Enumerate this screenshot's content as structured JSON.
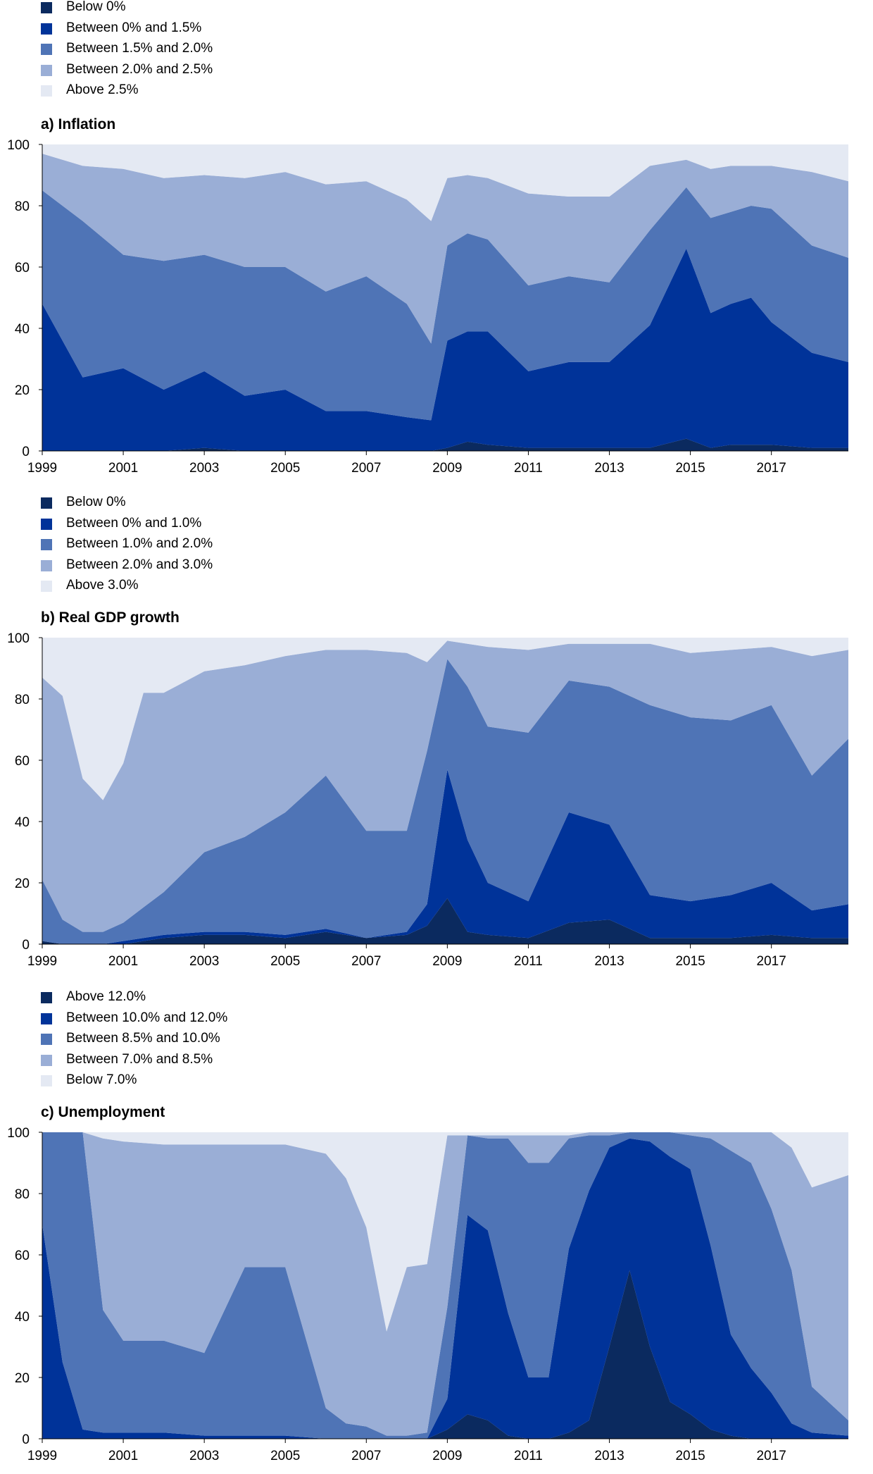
{
  "colors": [
    "#0b2a5f",
    "#003399",
    "#4f74b6",
    "#9aaed6",
    "#e4e9f3"
  ],
  "chart_data": [
    {
      "type": "area",
      "title": "a) Inflation",
      "stacked": true,
      "ylim": [
        0,
        100
      ],
      "yticks": [
        "0",
        "20",
        "40",
        "60",
        "80",
        "100"
      ],
      "xlim": [
        1999,
        2018.9
      ],
      "xticks": [
        "1999",
        "2001",
        "2003",
        "2005",
        "2007",
        "2009",
        "2011",
        "2013",
        "2015",
        "2017"
      ],
      "legend_position": "top-left",
      "x": [
        1999.0,
        2000.0,
        2001.0,
        2002.0,
        2003.0,
        2004.0,
        2005.0,
        2006.0,
        2007.0,
        2008.0,
        2008.6,
        2009.0,
        2009.5,
        2010.0,
        2011.0,
        2012.0,
        2013.0,
        2014.0,
        2014.9,
        2015.5,
        2016.0,
        2016.5,
        2017.0,
        2018.0,
        2018.9
      ],
      "series": [
        {
          "name": "Below 0%",
          "values": [
            0,
            0,
            0,
            0,
            1,
            0,
            0,
            0,
            0,
            0,
            0,
            1,
            3,
            2,
            1,
            1,
            1,
            1,
            4,
            1,
            2,
            2,
            2,
            1,
            1
          ]
        },
        {
          "name": "Between 0% and 1.5%",
          "values": [
            48,
            24,
            27,
            20,
            25,
            18,
            20,
            13,
            13,
            11,
            10,
            35,
            36,
            37,
            25,
            28,
            28,
            40,
            62,
            44,
            46,
            48,
            40,
            31,
            28
          ]
        },
        {
          "name": "Between 1.5% and 2.0%",
          "values": [
            37,
            51,
            37,
            42,
            38,
            42,
            40,
            39,
            44,
            37,
            25,
            31,
            32,
            30,
            28,
            28,
            26,
            31,
            20,
            31,
            30,
            30,
            37,
            35,
            34
          ]
        },
        {
          "name": "Between 2.0% and 2.5%",
          "values": [
            12,
            18,
            28,
            27,
            26,
            29,
            31,
            35,
            31,
            34,
            40,
            22,
            19,
            20,
            30,
            26,
            28,
            21,
            9,
            16,
            15,
            13,
            14,
            24,
            25
          ]
        },
        {
          "name": "Above 2.5%",
          "values": [
            3,
            7,
            8,
            11,
            10,
            11,
            9,
            13,
            12,
            18,
            25,
            11,
            10,
            11,
            16,
            17,
            17,
            7,
            5,
            8,
            7,
            7,
            7,
            9,
            12
          ]
        }
      ]
    },
    {
      "type": "area",
      "title": "b) Real GDP growth",
      "stacked": true,
      "ylim": [
        0,
        100
      ],
      "yticks": [
        "0",
        "20",
        "40",
        "60",
        "80",
        "100"
      ],
      "xlim": [
        1999,
        2018.9
      ],
      "xticks": [
        "1999",
        "2001",
        "2003",
        "2005",
        "2007",
        "2009",
        "2011",
        "2013",
        "2015",
        "2017"
      ],
      "legend_position": "top-left",
      "x": [
        1999.0,
        1999.5,
        2000.0,
        2000.5,
        2001.0,
        2001.5,
        2002.0,
        2003.0,
        2004.0,
        2005.0,
        2006.0,
        2007.0,
        2008.0,
        2008.5,
        2009.0,
        2009.5,
        2010.0,
        2011.0,
        2012.0,
        2013.0,
        2014.0,
        2015.0,
        2016.0,
        2017.0,
        2018.0,
        2018.9
      ],
      "series": [
        {
          "name": "Below 0%",
          "values": [
            1,
            0,
            0,
            0,
            0,
            1,
            2,
            3,
            3,
            2,
            4,
            2,
            3,
            6,
            15,
            4,
            3,
            2,
            7,
            8,
            2,
            2,
            2,
            3,
            2,
            2
          ]
        },
        {
          "name": "Between 0% and 1.0%",
          "values": [
            0,
            0,
            0,
            0,
            1,
            1,
            1,
            1,
            1,
            1,
            1,
            0,
            1,
            7,
            42,
            30,
            17,
            12,
            36,
            31,
            14,
            12,
            14,
            17,
            9,
            11
          ]
        },
        {
          "name": "Between 1.0% and 2.0%",
          "values": [
            20,
            8,
            4,
            4,
            6,
            10,
            14,
            26,
            31,
            40,
            50,
            35,
            33,
            50,
            36,
            50,
            51,
            55,
            43,
            45,
            62,
            60,
            57,
            58,
            44,
            54
          ]
        },
        {
          "name": "Between 2.0% and 3.0%",
          "values": [
            66,
            73,
            50,
            43,
            52,
            70,
            65,
            59,
            56,
            51,
            41,
            59,
            58,
            29,
            6,
            14,
            26,
            27,
            12,
            14,
            20,
            21,
            23,
            19,
            39,
            29
          ]
        },
        {
          "name": "Above 3.0%",
          "values": [
            13,
            19,
            46,
            53,
            41,
            18,
            18,
            11,
            9,
            6,
            4,
            4,
            5,
            8,
            1,
            2,
            3,
            4,
            2,
            2,
            2,
            5,
            4,
            3,
            6,
            4
          ]
        }
      ]
    },
    {
      "type": "area",
      "title": "c) Unemployment",
      "stacked": true,
      "ylim": [
        0,
        100
      ],
      "yticks": [
        "0",
        "20",
        "40",
        "60",
        "80",
        "100"
      ],
      "xlim": [
        1999,
        2018.9
      ],
      "xticks": [
        "1999",
        "2001",
        "2003",
        "2005",
        "2007",
        "2009",
        "2011",
        "2013",
        "2015",
        "2017"
      ],
      "legend_position": "top-left",
      "x": [
        1999.0,
        1999.5,
        2000.0,
        2000.5,
        2001.0,
        2002.0,
        2003.0,
        2004.0,
        2005.0,
        2006.0,
        2006.5,
        2007.0,
        2007.5,
        2008.0,
        2008.5,
        2009.0,
        2009.5,
        2010.0,
        2010.5,
        2011.0,
        2011.5,
        2012.0,
        2012.5,
        2013.0,
        2013.5,
        2014.0,
        2014.5,
        2015.0,
        2015.5,
        2016.0,
        2016.5,
        2017.0,
        2017.5,
        2018.0,
        2018.9
      ],
      "series": [
        {
          "name": "Above 12.0%",
          "values": [
            0,
            0,
            0,
            0,
            0,
            0,
            0,
            0,
            0,
            0,
            0,
            0,
            0,
            0,
            0,
            3,
            8,
            6,
            1,
            0,
            0,
            2,
            6,
            30,
            55,
            30,
            12,
            8,
            3,
            1,
            0,
            0,
            0,
            0,
            0
          ]
        },
        {
          "name": "Between 10.0% and 12.0%",
          "values": [
            70,
            25,
            3,
            2,
            2,
            2,
            1,
            1,
            1,
            0,
            0,
            0,
            0,
            0,
            0,
            10,
            65,
            62,
            40,
            20,
            20,
            60,
            75,
            65,
            43,
            67,
            80,
            80,
            60,
            33,
            23,
            15,
            5,
            2,
            1
          ]
        },
        {
          "name": "Between 8.5% and 10.0%",
          "values": [
            30,
            75,
            97,
            40,
            30,
            30,
            27,
            55,
            55,
            10,
            5,
            4,
            1,
            1,
            2,
            30,
            26,
            30,
            57,
            70,
            70,
            36,
            18,
            4,
            2,
            3,
            8,
            11,
            35,
            60,
            67,
            60,
            50,
            15,
            5
          ]
        },
        {
          "name": "Between 7.0% and 8.5%",
          "values": [
            0,
            0,
            0,
            56,
            65,
            64,
            68,
            40,
            40,
            83,
            80,
            65,
            34,
            55,
            55,
            56,
            0,
            1,
            1,
            9,
            9,
            1,
            1,
            1,
            0,
            0,
            0,
            1,
            2,
            6,
            10,
            25,
            40,
            65,
            80
          ]
        },
        {
          "name": "Below 7.0%",
          "values": [
            0,
            0,
            0,
            2,
            3,
            4,
            4,
            4,
            4,
            7,
            15,
            31,
            65,
            44,
            43,
            1,
            1,
            1,
            1,
            1,
            1,
            1,
            0,
            0,
            0,
            0,
            0,
            0,
            0,
            0,
            0,
            0,
            5,
            18,
            14
          ]
        }
      ]
    }
  ]
}
